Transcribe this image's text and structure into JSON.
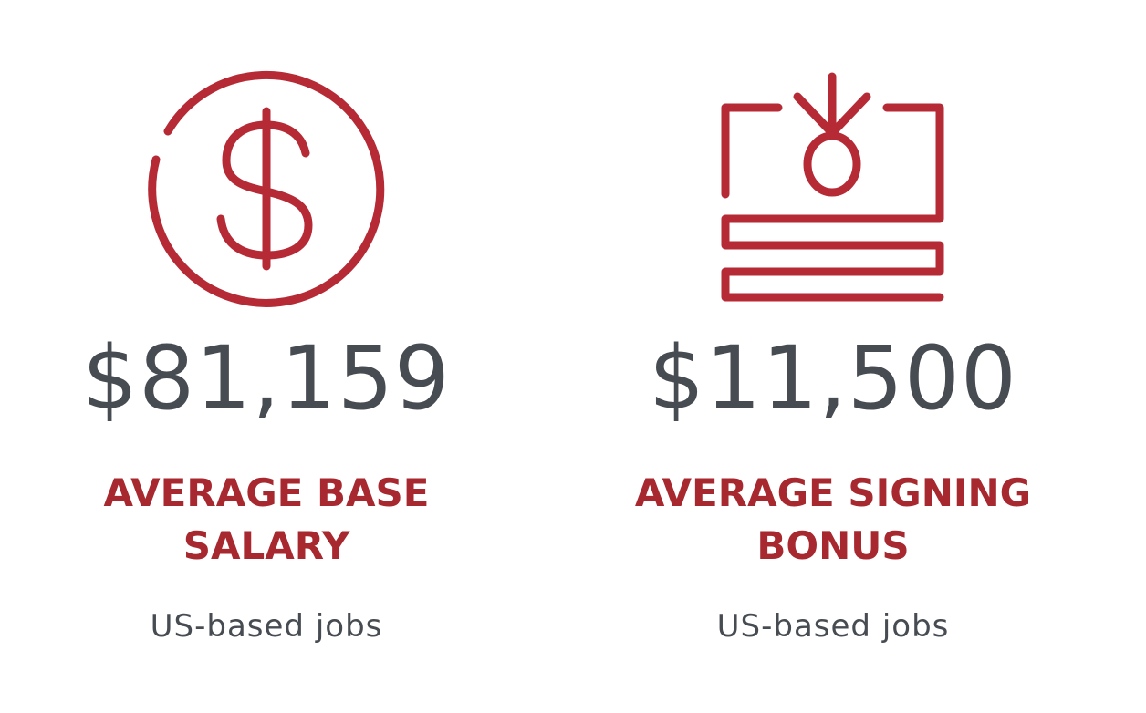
{
  "stats": [
    {
      "value": "$81,159",
      "label_lines": [
        "AVERAGE BASE",
        "SALARY"
      ],
      "subtitle": "US-based jobs"
    },
    {
      "value": "$11,500",
      "label_lines": [
        "AVERAGE SIGNING",
        "BONUS"
      ],
      "subtitle": "US-based jobs"
    }
  ]
}
